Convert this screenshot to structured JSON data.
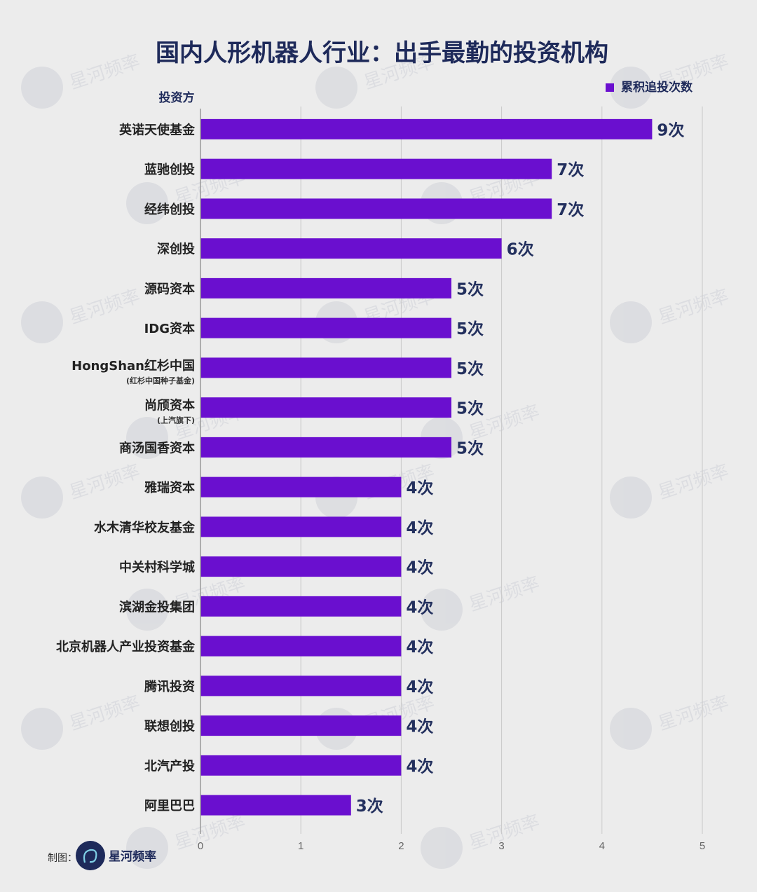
{
  "chart_data": {
    "type": "bar",
    "orientation": "horizontal",
    "title": "国内人形机器人行业：出手最勤的投资机构",
    "ylabel": "投资方",
    "legend": {
      "label": "累积追投次数",
      "position": "top-right"
    },
    "categories": [
      {
        "label": "英诺天使基金",
        "sub": ""
      },
      {
        "label": "蓝驰创投",
        "sub": ""
      },
      {
        "label": "经纬创投",
        "sub": ""
      },
      {
        "label": "深创投",
        "sub": ""
      },
      {
        "label": "源码资本",
        "sub": ""
      },
      {
        "label": "IDG资本",
        "sub": ""
      },
      {
        "label": "HongShan红杉中国",
        "sub": "(红杉中国种子基金)"
      },
      {
        "label": "尚颀资本",
        "sub": "(上汽旗下)"
      },
      {
        "label": "商汤国香资本",
        "sub": ""
      },
      {
        "label": "雅瑞资本",
        "sub": ""
      },
      {
        "label": "水木清华校友基金",
        "sub": ""
      },
      {
        "label": "中关村科学城",
        "sub": ""
      },
      {
        "label": "滨湖金投集团",
        "sub": ""
      },
      {
        "label": "北京机器人产业投资基金",
        "sub": ""
      },
      {
        "label": "腾讯投资",
        "sub": ""
      },
      {
        "label": "联想创投",
        "sub": ""
      },
      {
        "label": "北汽产投",
        "sub": ""
      },
      {
        "label": "阿里巴巴",
        "sub": ""
      }
    ],
    "values": [
      4.5,
      3.5,
      3.5,
      3.0,
      2.5,
      2.5,
      2.5,
      2.5,
      2.5,
      2.0,
      2.0,
      2.0,
      2.0,
      2.0,
      2.0,
      2.0,
      2.0,
      1.5
    ],
    "value_labels": [
      "9次",
      "7次",
      "7次",
      "6次",
      "5次",
      "5次",
      "5次",
      "5次",
      "5次",
      "4次",
      "4次",
      "4次",
      "4次",
      "4次",
      "4次",
      "4次",
      "4次",
      "3次"
    ],
    "xlim": [
      0,
      5
    ],
    "xticks": [
      "0",
      "1",
      "2",
      "3",
      "4",
      "5"
    ],
    "grid": true,
    "bar_color": "#6a0fcf"
  },
  "footer": {
    "label": "制图：",
    "brand": "星河频率"
  },
  "watermark": "星河频率",
  "colors": {
    "background": "#ececec",
    "title": "#1e2a5a",
    "value_label": "#23305e"
  }
}
